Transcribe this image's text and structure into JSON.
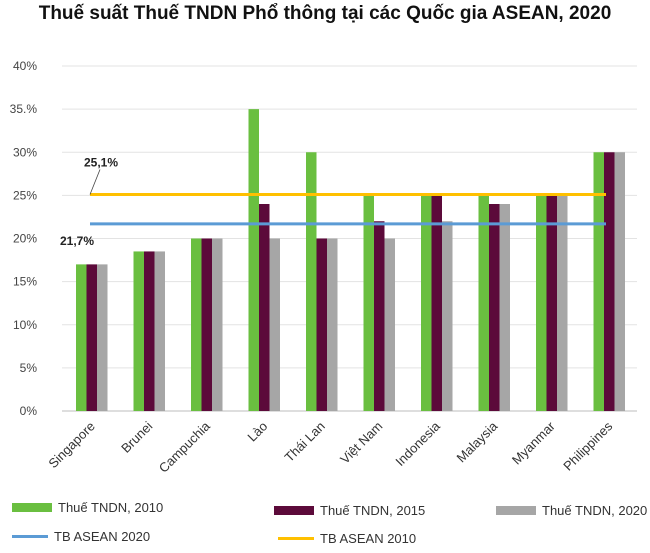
{
  "chart_data": {
    "type": "bar",
    "title": "Thuế suất Thuế TNDN Phổ thông tại các Quốc gia ASEAN, 2020",
    "xlabel": "",
    "ylabel": "",
    "ylim": [
      0,
      40
    ],
    "yticks": [
      "0%",
      "5%",
      "10%",
      "15%",
      "20%",
      "25%",
      "30%",
      "35.%",
      "40%"
    ],
    "categories": [
      "Singapore",
      "Brunei",
      "Campuchia",
      "Lào",
      "Thái Lan",
      "Việt Nam",
      "Indonesia",
      "Malaysia",
      "Myanmar",
      "Philippines"
    ],
    "series": [
      {
        "name": "Thuế TNDN, 2010",
        "color": "#6abf40",
        "values": [
          17,
          18.5,
          20,
          35,
          30,
          25,
          25,
          25,
          25,
          30
        ]
      },
      {
        "name": "Thuế TNDN, 2015",
        "color": "#5c0a3a",
        "values": [
          17,
          18.5,
          20,
          24,
          20,
          22,
          25,
          24,
          25,
          30
        ]
      },
      {
        "name": "Thuế TNDN, 2020",
        "color": "#a6a6a6",
        "values": [
          17,
          18.5,
          20,
          20,
          20,
          20,
          22,
          24,
          25,
          30
        ]
      }
    ],
    "reference_lines": [
      {
        "name": "TB ASEAN 2020",
        "value": 21.7,
        "label": "21,7%",
        "color": "#5b9bd5"
      },
      {
        "name": "TB ASEAN 2010",
        "value": 25.1,
        "label": "25,1%",
        "color": "#ffc000"
      }
    ],
    "grid": true,
    "legend_position": "bottom"
  }
}
